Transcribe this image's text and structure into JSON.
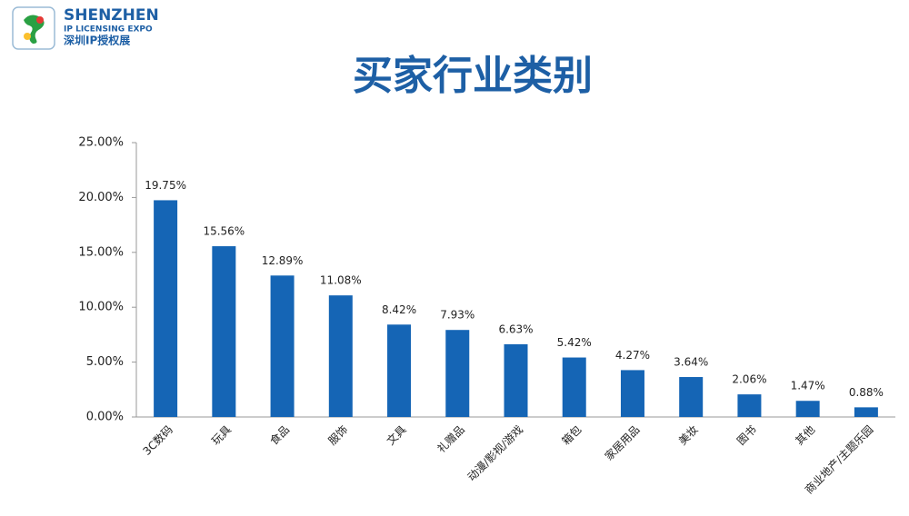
{
  "logo": {
    "name": "SHENZHEN",
    "subtitle": "IP LICENSING EXPO",
    "chinese": "深圳IP授权展"
  },
  "chart_data": {
    "type": "bar",
    "title": "买家行业类别",
    "categories": [
      "3C数码",
      "玩具",
      "食品",
      "服饰",
      "文具",
      "礼赠品",
      "动漫/影视/游戏",
      "箱包",
      "家居用品",
      "美妆",
      "图书",
      "其他",
      "商业地产/主题乐园"
    ],
    "values": [
      19.75,
      15.56,
      12.89,
      11.08,
      8.42,
      7.93,
      6.63,
      5.42,
      4.27,
      3.64,
      2.06,
      1.47,
      0.88
    ],
    "value_labels": [
      "19.75%",
      "15.56%",
      "12.89%",
      "11.08%",
      "8.42%",
      "7.93%",
      "6.63%",
      "5.42%",
      "4.27%",
      "3.64%",
      "2.06%",
      "1.47%",
      "0.88%"
    ],
    "color": "#1565b5",
    "ylim": [
      0,
      25
    ],
    "yticks": [
      {
        "value": 0,
        "label": "0.00%"
      },
      {
        "value": 5,
        "label": "5.00%"
      },
      {
        "value": 10,
        "label": "10.00%"
      },
      {
        "value": 15,
        "label": "15.00%"
      },
      {
        "value": 20,
        "label": "20.00%"
      },
      {
        "value": 25,
        "label": "25.00%"
      }
    ],
    "grid": false
  }
}
